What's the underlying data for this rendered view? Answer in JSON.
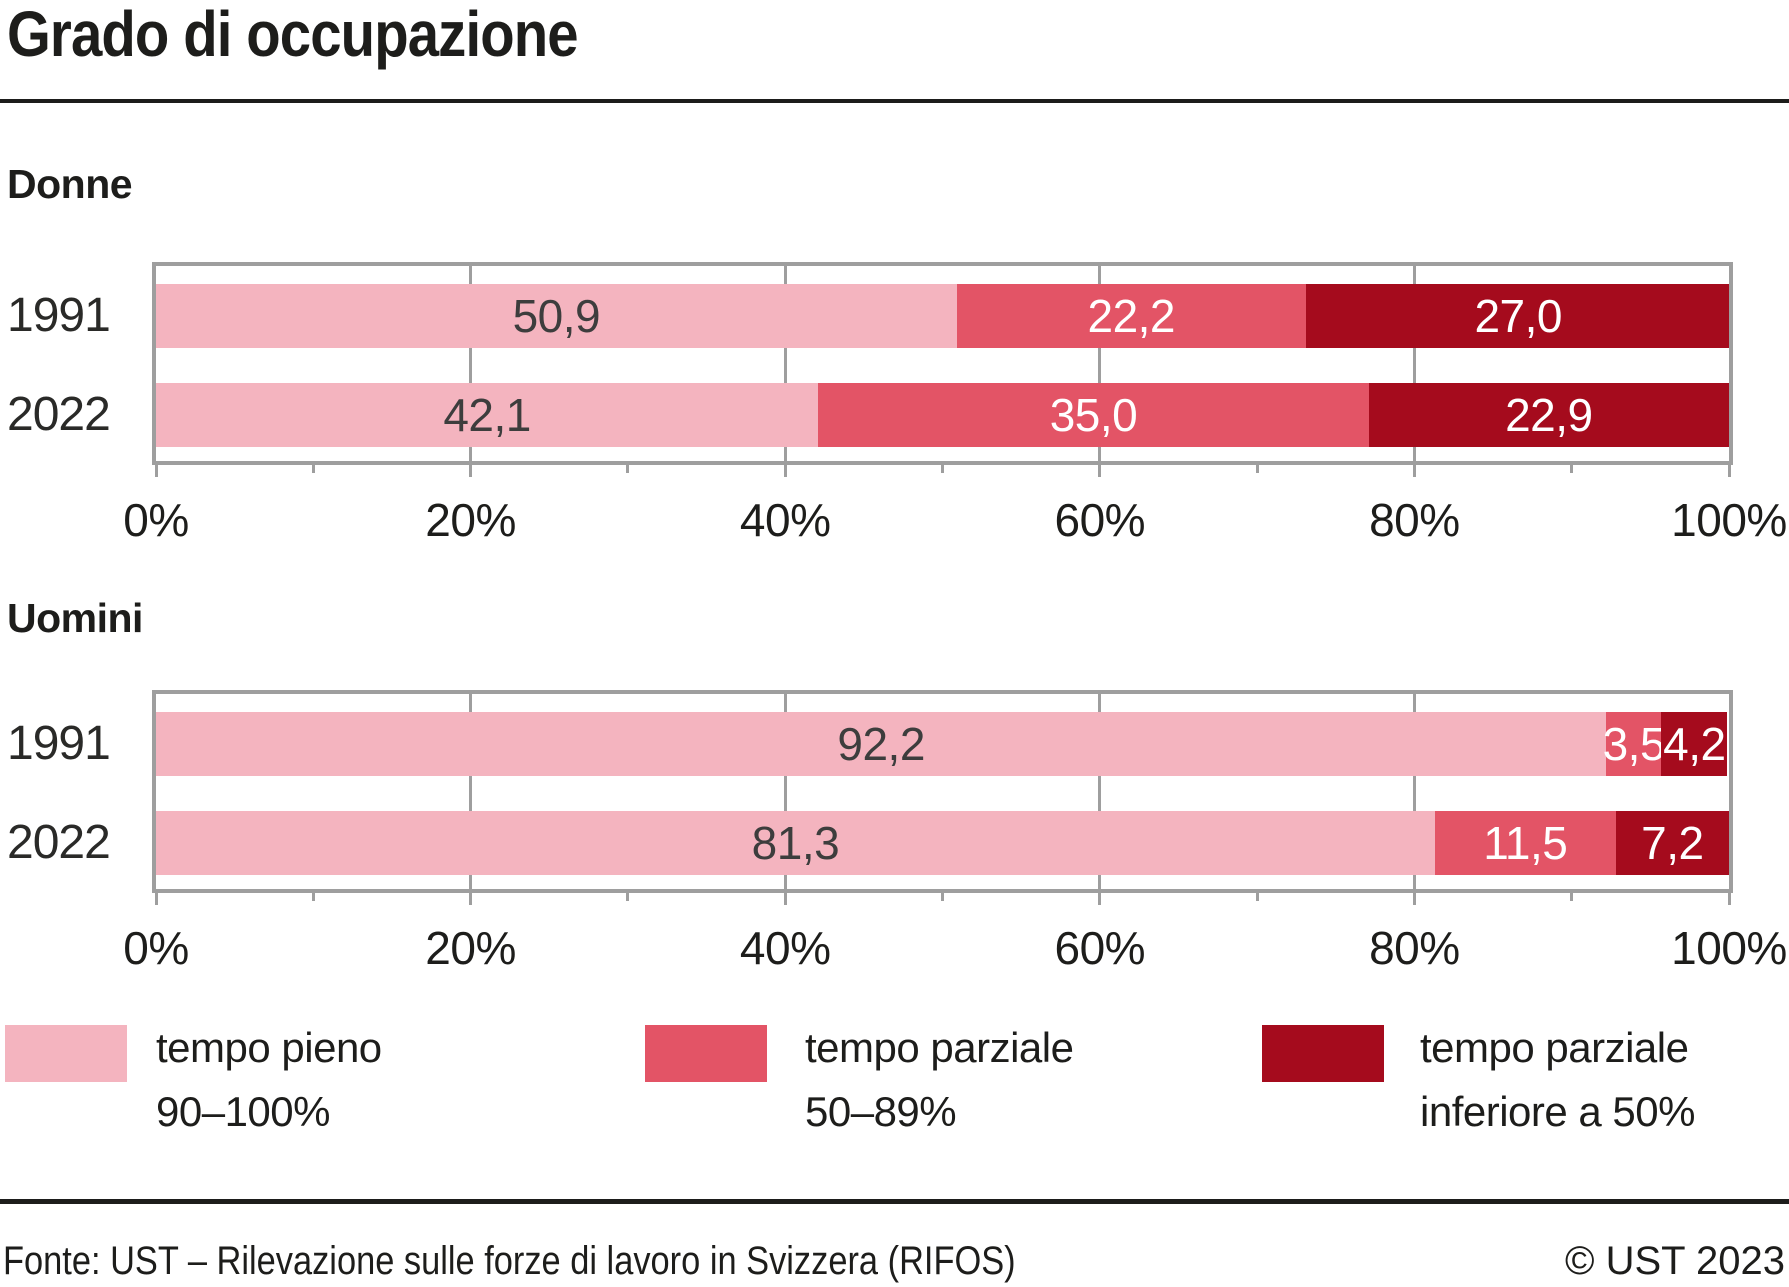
{
  "title": "Grado di occupazione",
  "footer": {
    "source": "Fonte: UST – Rilevazione sulle forze di lavoro in Svizzera (RIFOS)",
    "copyright": "© UST 2023"
  },
  "colors": {
    "full_time": "#f4b4bf",
    "part_time_50_89": "#e35466",
    "part_time_below_50": "#a50b1d",
    "grid": "#9e9e9e",
    "rule": "#1d1d1b"
  },
  "legend": [
    {
      "line1": "tempo pieno",
      "line2": "90–100%",
      "color_key": "full_time"
    },
    {
      "line1": "tempo parziale",
      "line2": "50–89%",
      "color_key": "part_time_50_89"
    },
    {
      "line1": "tempo parziale",
      "line2": "inferiore a 50%",
      "color_key": "part_time_below_50"
    }
  ],
  "chart_data": {
    "type": "bar",
    "orientation": "horizontal",
    "stacked": true,
    "unit": "%",
    "xlim": [
      0,
      100
    ],
    "xticks": [
      0,
      20,
      40,
      60,
      80,
      100
    ],
    "xtick_labels": [
      "0%",
      "20%",
      "40%",
      "60%",
      "80%",
      "100%"
    ],
    "minor_xticks": [
      10,
      30,
      50,
      70,
      90
    ],
    "grid": true,
    "series_names": [
      "tempo pieno 90–100%",
      "tempo parziale 50–89%",
      "tempo parziale inferiore a 50%"
    ],
    "series_color_keys": [
      "full_time",
      "part_time_50_89",
      "part_time_below_50"
    ],
    "groups": [
      {
        "label": "Donne",
        "rows": [
          {
            "category": "1991",
            "values": [
              50.9,
              22.2,
              27.0
            ],
            "display": [
              "50,9",
              "22,2",
              "27,0"
            ]
          },
          {
            "category": "2022",
            "values": [
              42.1,
              35.0,
              22.9
            ],
            "display": [
              "42,1",
              "35,0",
              "22,9"
            ]
          }
        ]
      },
      {
        "label": "Uomini",
        "rows": [
          {
            "category": "1991",
            "values": [
              92.2,
              3.5,
              4.2
            ],
            "display": [
              "92,2",
              "3,5",
              "4,2"
            ]
          },
          {
            "category": "2022",
            "values": [
              81.3,
              11.5,
              7.2
            ],
            "display": [
              "81,3",
              "11,5",
              "7,2"
            ]
          }
        ]
      }
    ]
  }
}
